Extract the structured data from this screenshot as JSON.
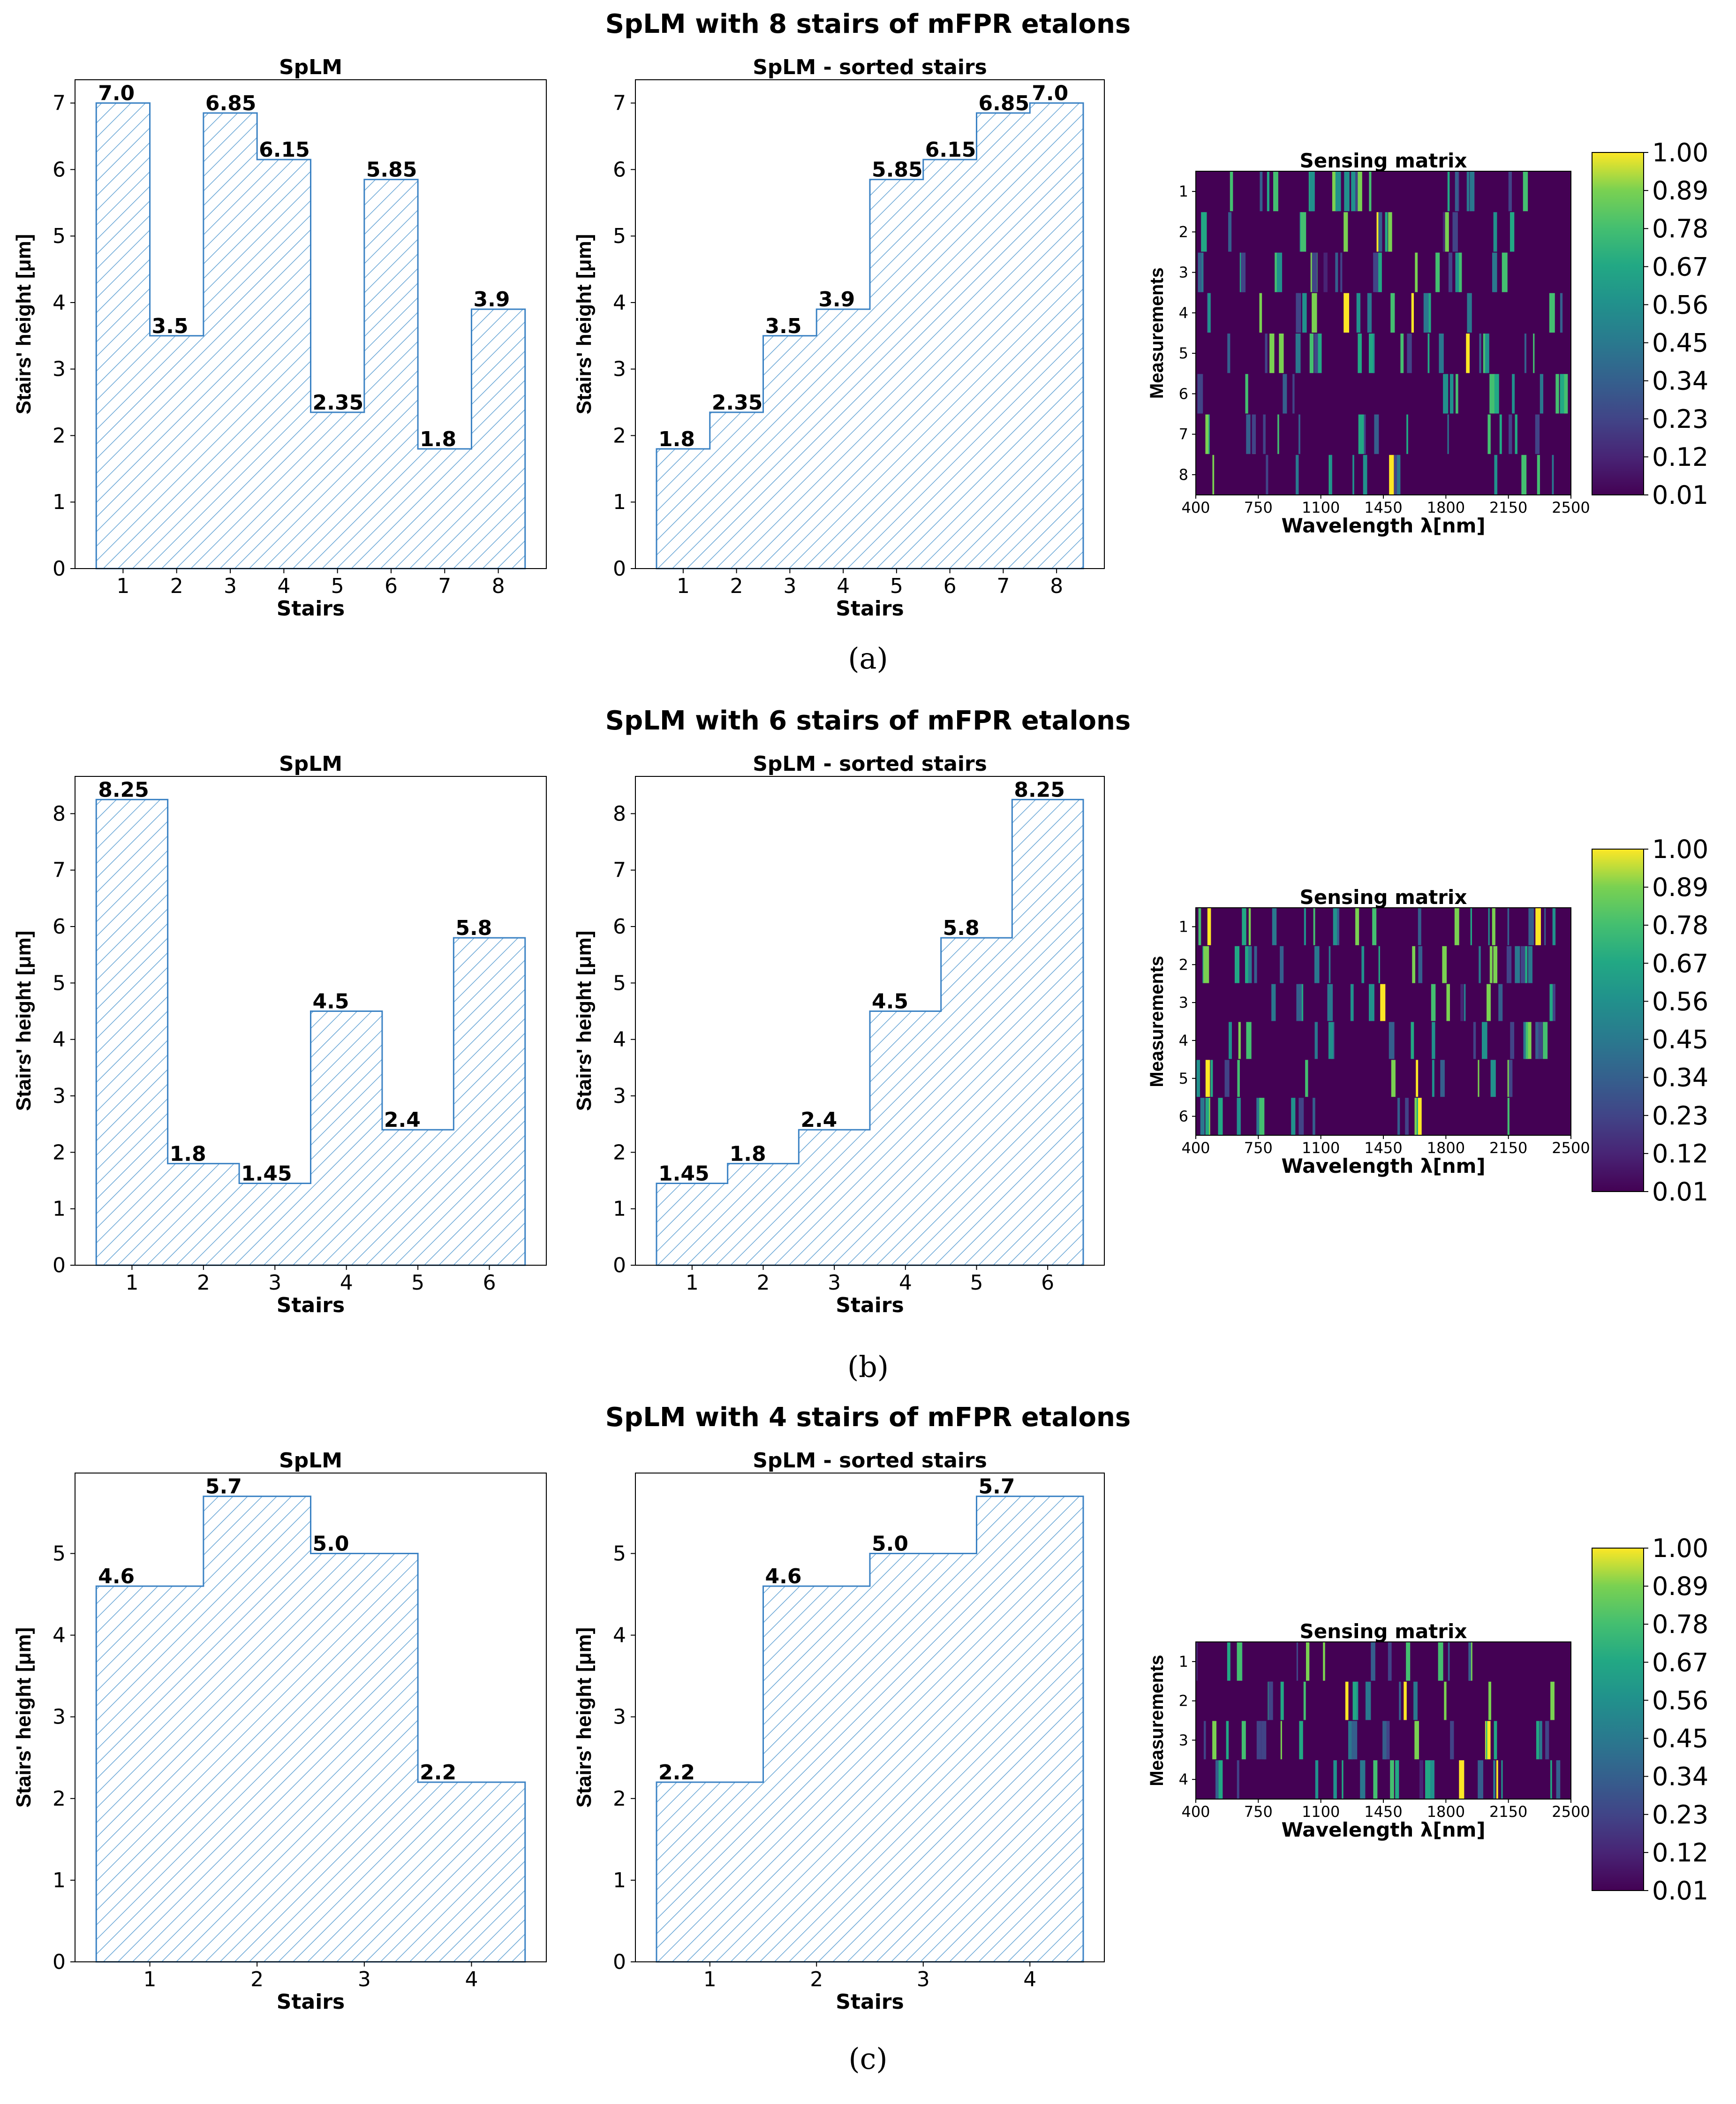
{
  "chart_data": [
    {
      "panel_label": "(a)",
      "suptitle": "SpLM with 8 stairs of mFPR etalons",
      "charts": [
        {
          "type": "bar",
          "title": "SpLM",
          "xlabel": "Stairs",
          "ylabel": "Stairs' height [μm]",
          "categories": [
            "1",
            "2",
            "3",
            "4",
            "5",
            "6",
            "7",
            "8"
          ],
          "values": [
            7.0,
            3.5,
            6.85,
            6.15,
            2.35,
            5.85,
            1.8,
            3.9
          ],
          "data_labels": [
            "7.0",
            "3.5",
            "6.85",
            "6.15",
            "2.35",
            "5.85",
            "1.8",
            "3.9"
          ],
          "yticks": [
            "0",
            "1",
            "2",
            "3",
            "4",
            "5",
            "6",
            "7"
          ],
          "ylim": [
            0,
            7.35
          ]
        },
        {
          "type": "bar",
          "title": "SpLM - sorted stairs",
          "xlabel": "Stairs",
          "ylabel": "Stairs' height [μm]",
          "categories": [
            "1",
            "2",
            "3",
            "4",
            "5",
            "6",
            "7",
            "8"
          ],
          "values": [
            1.8,
            2.35,
            3.5,
            3.9,
            5.85,
            6.15,
            6.85,
            7.0
          ],
          "data_labels": [
            "1.8",
            "2.35",
            "3.5",
            "3.9",
            "5.85",
            "6.15",
            "6.85",
            "7.0"
          ],
          "yticks": [
            "0",
            "1",
            "2",
            "3",
            "4",
            "5",
            "6",
            "7"
          ],
          "ylim": [
            0,
            7.35
          ]
        },
        {
          "type": "heatmap",
          "title": "Sensing matrix",
          "xlabel": "Wavelength λ[nm]",
          "ylabel": "Measurements",
          "rows": [
            "1",
            "2",
            "3",
            "4",
            "5",
            "6",
            "7",
            "8"
          ],
          "xticks": [
            "400",
            "750",
            "1100",
            "1450",
            "1800",
            "2150",
            "2500"
          ],
          "colorbar_ticks": [
            "1.00",
            "0.89",
            "0.78",
            "0.67",
            "0.56",
            "0.45",
            "0.34",
            "0.23",
            "0.12",
            "0.01"
          ]
        }
      ]
    },
    {
      "panel_label": "(b)",
      "suptitle": "SpLM with 6 stairs of mFPR etalons",
      "charts": [
        {
          "type": "bar",
          "title": "SpLM",
          "xlabel": "Stairs",
          "ylabel": "Stairs' height [μm]",
          "categories": [
            "1",
            "2",
            "3",
            "4",
            "5",
            "6"
          ],
          "values": [
            8.25,
            1.8,
            1.45,
            4.5,
            2.4,
            5.8
          ],
          "data_labels": [
            "8.25",
            "1.8",
            "1.45",
            "4.5",
            "2.4",
            "5.8"
          ],
          "yticks": [
            "0",
            "1",
            "2",
            "3",
            "4",
            "5",
            "6",
            "7",
            "8"
          ],
          "ylim": [
            0,
            8.66
          ]
        },
        {
          "type": "bar",
          "title": "SpLM - sorted stairs",
          "xlabel": "Stairs",
          "ylabel": "Stairs' height [μm]",
          "categories": [
            "1",
            "2",
            "3",
            "4",
            "5",
            "6"
          ],
          "values": [
            1.45,
            1.8,
            2.4,
            4.5,
            5.8,
            8.25
          ],
          "data_labels": [
            "1.45",
            "1.8",
            "2.4",
            "4.5",
            "5.8",
            "8.25"
          ],
          "yticks": [
            "0",
            "1",
            "2",
            "3",
            "4",
            "5",
            "6",
            "7",
            "8"
          ],
          "ylim": [
            0,
            8.66
          ]
        },
        {
          "type": "heatmap",
          "title": "Sensing matrix",
          "xlabel": "Wavelength λ[nm]",
          "ylabel": "Measurements",
          "rows": [
            "1",
            "2",
            "3",
            "4",
            "5",
            "6"
          ],
          "xticks": [
            "400",
            "750",
            "1100",
            "1450",
            "1800",
            "2150",
            "2500"
          ],
          "colorbar_ticks": [
            "1.00",
            "0.89",
            "0.78",
            "0.67",
            "0.56",
            "0.45",
            "0.34",
            "0.23",
            "0.12",
            "0.01"
          ]
        }
      ]
    },
    {
      "panel_label": "(c)",
      "suptitle": "SpLM with 4 stairs of mFPR etalons",
      "charts": [
        {
          "type": "bar",
          "title": "SpLM",
          "xlabel": "Stairs",
          "ylabel": "Stairs' height [μm]",
          "categories": [
            "1",
            "2",
            "3",
            "4"
          ],
          "values": [
            4.6,
            5.7,
            5.0,
            2.2
          ],
          "data_labels": [
            "4.6",
            "5.7",
            "5.0",
            "2.2"
          ],
          "yticks": [
            "0",
            "1",
            "2",
            "3",
            "4",
            "5"
          ],
          "ylim": [
            0,
            5.985
          ]
        },
        {
          "type": "bar",
          "title": "SpLM - sorted stairs",
          "xlabel": "Stairs",
          "ylabel": "Stairs' height [μm]",
          "categories": [
            "1",
            "2",
            "3",
            "4"
          ],
          "values": [
            2.2,
            4.6,
            5.0,
            5.7
          ],
          "data_labels": [
            "2.2",
            "4.6",
            "5.0",
            "5.7"
          ],
          "yticks": [
            "0",
            "1",
            "2",
            "3",
            "4",
            "5"
          ],
          "ylim": [
            0,
            5.985
          ]
        },
        {
          "type": "heatmap",
          "title": "Sensing matrix",
          "xlabel": "Wavelength λ[nm]",
          "ylabel": "Measurements",
          "rows": [
            "1",
            "2",
            "3",
            "4"
          ],
          "xticks": [
            "400",
            "750",
            "1100",
            "1450",
            "1800",
            "2150",
            "2500"
          ],
          "colorbar_ticks": [
            "1.00",
            "0.89",
            "0.78",
            "0.67",
            "0.56",
            "0.45",
            "0.34",
            "0.23",
            "0.12",
            "0.01"
          ]
        }
      ]
    }
  ],
  "colors": {
    "bar_edge": "#3b82c4",
    "hatch": "#6aa7d6",
    "axis": "#000000"
  }
}
